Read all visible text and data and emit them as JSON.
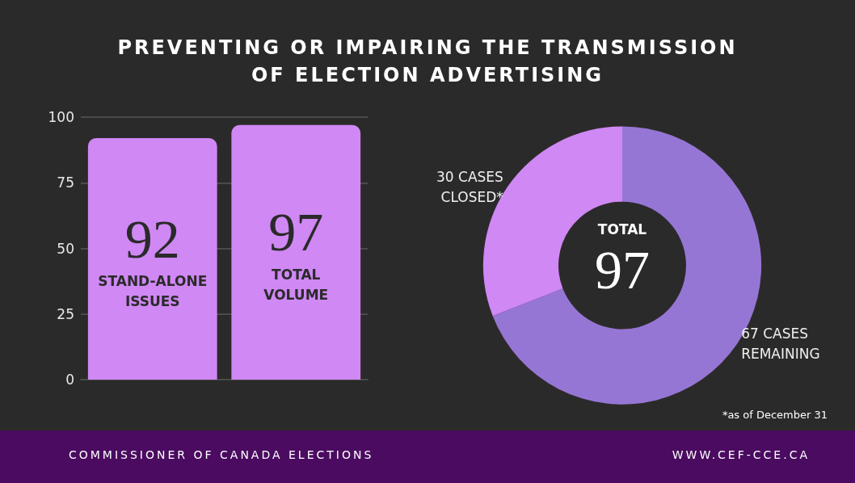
{
  "chart_data": [
    {
      "type": "bar",
      "title": "PREVENTING OR IMPAIRING THE TRANSMISSION\nOF ELECTION ADVERTISING",
      "categories": [
        "STAND-ALONE ISSUES",
        "TOTAL VOLUME"
      ],
      "values": [
        92,
        97
      ],
      "color": "#d088f5",
      "ylim": [
        0,
        100
      ],
      "yticks": [
        0,
        25,
        50,
        75,
        100
      ],
      "grid": "y",
      "data_labels": true,
      "annotations": [
        "COMMISSIONER OF CANADA ELECTIONS",
        "WWW.CEF-CCE.CA"
      ]
    },
    {
      "type": "donut",
      "title": "TOTAL",
      "categories": [
        "67 CASES REMAINING",
        "30 CASES CLOSED*"
      ],
      "values": [
        67,
        30
      ],
      "colors": [
        "#9676d4",
        "#cf88f4"
      ],
      "totals": [
        "97"
      ],
      "annotations": [
        "*as of December 31"
      ]
    }
  ]
}
